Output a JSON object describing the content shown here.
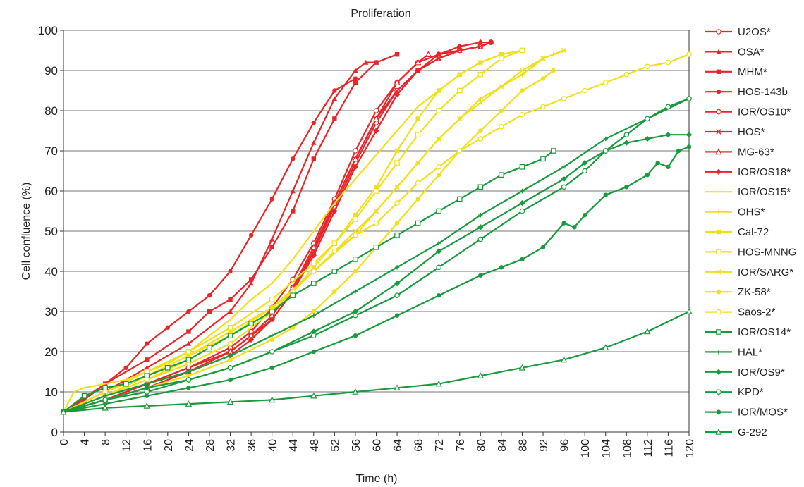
{
  "chart_data": {
    "type": "line",
    "title": "Proliferation",
    "xlabel": "Time (h)",
    "ylabel": "Cell confluence (%)",
    "xlim": [
      0,
      120
    ],
    "ylim": [
      0,
      100
    ],
    "xticks": [
      "0",
      "4",
      "8",
      "12",
      "16",
      "20",
      "24",
      "28",
      "32",
      "36",
      "40",
      "44",
      "48",
      "52",
      "56",
      "60",
      "64",
      "68",
      "72",
      "76",
      "80",
      "84",
      "88",
      "92",
      "96",
      "100",
      "104",
      "108",
      "112",
      "116",
      "120"
    ],
    "yticks": [
      "0",
      "10",
      "20",
      "30",
      "40",
      "50",
      "60",
      "70",
      "80",
      "90",
      "100"
    ],
    "grid": "horizontal",
    "legend_position": "right",
    "series": [
      {
        "name": "U2OS*",
        "color": "#e8262a",
        "marker": "circle-open",
        "x": [
          0,
          8,
          16,
          24,
          32,
          36,
          40,
          44,
          48,
          52,
          56,
          60,
          64,
          68,
          72,
          76,
          80,
          82
        ],
        "y": [
          5,
          8,
          12,
          16,
          21,
          25,
          31,
          38,
          47,
          58,
          70,
          80,
          87,
          92,
          94,
          95,
          96,
          97
        ]
      },
      {
        "name": "OSA*",
        "color": "#e8262a",
        "marker": "triangle",
        "x": [
          0,
          8,
          16,
          24,
          32,
          36,
          40,
          44,
          48,
          52,
          56,
          58,
          60
        ],
        "y": [
          5,
          10,
          16,
          22,
          30,
          37,
          48,
          60,
          72,
          83,
          90,
          92,
          92
        ]
      },
      {
        "name": "MHM*",
        "color": "#e8262a",
        "marker": "square",
        "x": [
          0,
          8,
          16,
          24,
          28,
          32,
          36,
          40,
          44,
          48,
          52,
          56,
          60,
          64
        ],
        "y": [
          5,
          12,
          18,
          25,
          30,
          33,
          38,
          46,
          55,
          68,
          78,
          87,
          92,
          94
        ]
      },
      {
        "name": "HOS-143b",
        "color": "#e8262a",
        "marker": "circle",
        "x": [
          0,
          4,
          8,
          12,
          16,
          20,
          24,
          28,
          32,
          36,
          40,
          44,
          48,
          52,
          56
        ],
        "y": [
          5,
          8,
          12,
          16,
          22,
          26,
          30,
          34,
          40,
          49,
          58,
          68,
          77,
          85,
          88
        ]
      },
      {
        "name": "IOR/OS10*",
        "color": "#e8262a",
        "marker": "circle-open",
        "x": [
          0,
          8,
          16,
          24,
          32,
          36,
          40,
          44,
          48,
          52,
          56,
          60,
          64,
          68,
          72,
          76,
          80,
          82
        ],
        "y": [
          5,
          8,
          12,
          16,
          20,
          24,
          29,
          36,
          45,
          56,
          67,
          77,
          85,
          90,
          93,
          95,
          96,
          97
        ]
      },
      {
        "name": "HOS*",
        "color": "#e8262a",
        "marker": "x",
        "x": [
          0,
          8,
          16,
          24,
          32,
          36,
          40,
          44,
          48,
          52,
          56,
          60,
          64,
          68,
          72,
          76,
          80
        ],
        "y": [
          5,
          8,
          12,
          15,
          20,
          24,
          28,
          35,
          45,
          57,
          68,
          78,
          85,
          90,
          93,
          95,
          96
        ]
      },
      {
        "name": "MG-63*",
        "color": "#e8262a",
        "marker": "triangle-open",
        "x": [
          0,
          8,
          16,
          24,
          32,
          36,
          40,
          44,
          48,
          52,
          56,
          60,
          64,
          68,
          70
        ],
        "y": [
          5,
          8,
          11,
          15,
          20,
          24,
          29,
          36,
          46,
          57,
          68,
          78,
          87,
          92,
          94
        ]
      },
      {
        "name": "IOR/OS18*",
        "color": "#e8262a",
        "marker": "diamond",
        "x": [
          0,
          8,
          16,
          24,
          32,
          36,
          40,
          44,
          48,
          52,
          56,
          60,
          64,
          68,
          72,
          76,
          80,
          82
        ],
        "y": [
          5,
          8,
          12,
          15,
          19,
          23,
          28,
          35,
          44,
          55,
          66,
          75,
          84,
          90,
          94,
          96,
          97,
          97
        ]
      },
      {
        "name": "IOR/OS15*",
        "color": "#f0e01a",
        "marker": "none",
        "x": [
          0,
          2,
          4,
          8,
          12,
          16,
          20,
          24,
          28,
          32,
          36,
          40,
          44,
          48,
          52,
          56,
          60,
          64,
          68,
          72,
          76,
          80,
          84
        ],
        "y": [
          5,
          10,
          11,
          12,
          13,
          15,
          17,
          20,
          24,
          28,
          33,
          37,
          43,
          50,
          57,
          63,
          69,
          75,
          81,
          85,
          89,
          92,
          94
        ]
      },
      {
        "name": "OHS*",
        "color": "#f0e01a",
        "marker": "plus",
        "x": [
          0,
          8,
          16,
          24,
          32,
          40,
          48,
          56,
          60,
          64,
          68,
          72,
          76,
          80,
          84,
          88,
          90,
          92,
          94,
          96
        ],
        "y": [
          5,
          9,
          14,
          19,
          24,
          30,
          40,
          49,
          55,
          61,
          67,
          73,
          78,
          83,
          86,
          89,
          91,
          93,
          94,
          95
        ]
      },
      {
        "name": "Cal-72",
        "color": "#f0e01a",
        "marker": "square",
        "x": [
          0,
          8,
          16,
          24,
          32,
          40,
          44,
          48,
          52,
          56,
          60,
          64,
          68,
          72,
          76,
          80,
          84,
          88
        ],
        "y": [
          5,
          10,
          14,
          19,
          25,
          31,
          35,
          41,
          47,
          54,
          61,
          70,
          78,
          85,
          89,
          92,
          94,
          95
        ]
      },
      {
        "name": "HOS-MNNG",
        "color": "#f0e01a",
        "marker": "square-open",
        "x": [
          0,
          8,
          16,
          24,
          32,
          40,
          48,
          52,
          56,
          60,
          64,
          68,
          72,
          76,
          80,
          84,
          88
        ],
        "y": [
          5,
          10,
          15,
          20,
          26,
          33,
          42,
          47,
          53,
          60,
          67,
          74,
          80,
          85,
          89,
          93,
          95
        ]
      },
      {
        "name": "IOR/SARG*",
        "color": "#f0e01a",
        "marker": "x",
        "x": [
          0,
          8,
          16,
          24,
          32,
          40,
          48,
          56,
          60,
          64,
          68,
          72,
          76,
          80,
          84,
          88,
          92,
          96
        ],
        "y": [
          5,
          9,
          13,
          18,
          24,
          31,
          40,
          50,
          55,
          61,
          67,
          73,
          78,
          82,
          86,
          90,
          93,
          95
        ]
      },
      {
        "name": "ZK-58*",
        "color": "#f0e01a",
        "marker": "circle",
        "x": [
          0,
          8,
          16,
          24,
          32,
          40,
          44,
          48,
          52,
          56,
          60,
          64,
          68,
          72,
          76,
          80,
          84,
          88,
          92,
          94
        ],
        "y": [
          5,
          8,
          11,
          14,
          18,
          23,
          26,
          30,
          35,
          40,
          46,
          52,
          58,
          64,
          70,
          75,
          80,
          85,
          88,
          90
        ]
      },
      {
        "name": "Saos-2*",
        "color": "#f0e01a",
        "marker": "circle-open",
        "x": [
          0,
          8,
          16,
          24,
          32,
          40,
          44,
          48,
          52,
          56,
          60,
          64,
          68,
          72,
          76,
          80,
          84,
          88,
          92,
          96,
          100,
          104,
          108,
          112,
          116,
          120
        ],
        "y": [
          5,
          9,
          13,
          17,
          22,
          30,
          35,
          40,
          45,
          49,
          52,
          57,
          62,
          66,
          70,
          73,
          76,
          79,
          81,
          83,
          85,
          87,
          89,
          91,
          92,
          94
        ]
      },
      {
        "name": "IOR/OS14*",
        "color": "#1a9a3e",
        "marker": "square-open",
        "x": [
          0,
          4,
          8,
          12,
          16,
          20,
          24,
          28,
          32,
          36,
          40,
          44,
          48,
          52,
          56,
          60,
          64,
          68,
          72,
          76,
          80,
          84,
          88,
          92,
          94
        ],
        "y": [
          5,
          9,
          11,
          12,
          14,
          16,
          18,
          21,
          24,
          27,
          30,
          34,
          37,
          40,
          43,
          46,
          49,
          52,
          55,
          58,
          61,
          64,
          66,
          68,
          70
        ]
      },
      {
        "name": "HAL*",
        "color": "#1a9a3e",
        "marker": "plus",
        "x": [
          0,
          8,
          16,
          24,
          32,
          40,
          48,
          56,
          64,
          72,
          80,
          88,
          96,
          104,
          112,
          120
        ],
        "y": [
          5,
          9,
          12,
          15,
          19,
          24,
          29,
          35,
          41,
          47,
          54,
          60,
          66,
          73,
          78,
          83
        ]
      },
      {
        "name": "IOR/OS9*",
        "color": "#1a9a3e",
        "marker": "diamond",
        "x": [
          0,
          8,
          16,
          24,
          32,
          40,
          48,
          56,
          64,
          72,
          80,
          88,
          96,
          100,
          104,
          108,
          112,
          116,
          120
        ],
        "y": [
          5,
          8,
          11,
          13,
          16,
          20,
          25,
          30,
          37,
          45,
          51,
          57,
          63,
          67,
          70,
          72,
          73,
          74,
          74
        ]
      },
      {
        "name": "KPD*",
        "color": "#1a9a3e",
        "marker": "circle-open",
        "x": [
          0,
          8,
          16,
          24,
          32,
          40,
          48,
          56,
          64,
          72,
          80,
          88,
          96,
          100,
          104,
          108,
          112,
          116,
          120
        ],
        "y": [
          5,
          8,
          10,
          13,
          16,
          20,
          24,
          29,
          34,
          41,
          48,
          55,
          61,
          65,
          70,
          74,
          78,
          81,
          83
        ]
      },
      {
        "name": "IOR/MOS*",
        "color": "#1a9a3e",
        "marker": "circle",
        "x": [
          0,
          8,
          16,
          24,
          32,
          40,
          48,
          56,
          64,
          72,
          80,
          84,
          88,
          92,
          96,
          98,
          100,
          104,
          108,
          112,
          114,
          116,
          118,
          120
        ],
        "y": [
          5,
          7,
          9,
          11,
          13,
          16,
          20,
          24,
          29,
          34,
          39,
          41,
          43,
          46,
          52,
          51,
          54,
          59,
          61,
          64,
          67,
          66,
          70,
          71
        ]
      },
      {
        "name": "G-292",
        "color": "#1a9a3e",
        "marker": "triangle-open",
        "x": [
          0,
          8,
          16,
          24,
          32,
          40,
          48,
          56,
          64,
          72,
          80,
          88,
          96,
          104,
          112,
          120
        ],
        "y": [
          5,
          6,
          6.5,
          7,
          7.5,
          8,
          9,
          10,
          11,
          12,
          14,
          16,
          18,
          21,
          25,
          30
        ]
      }
    ]
  }
}
